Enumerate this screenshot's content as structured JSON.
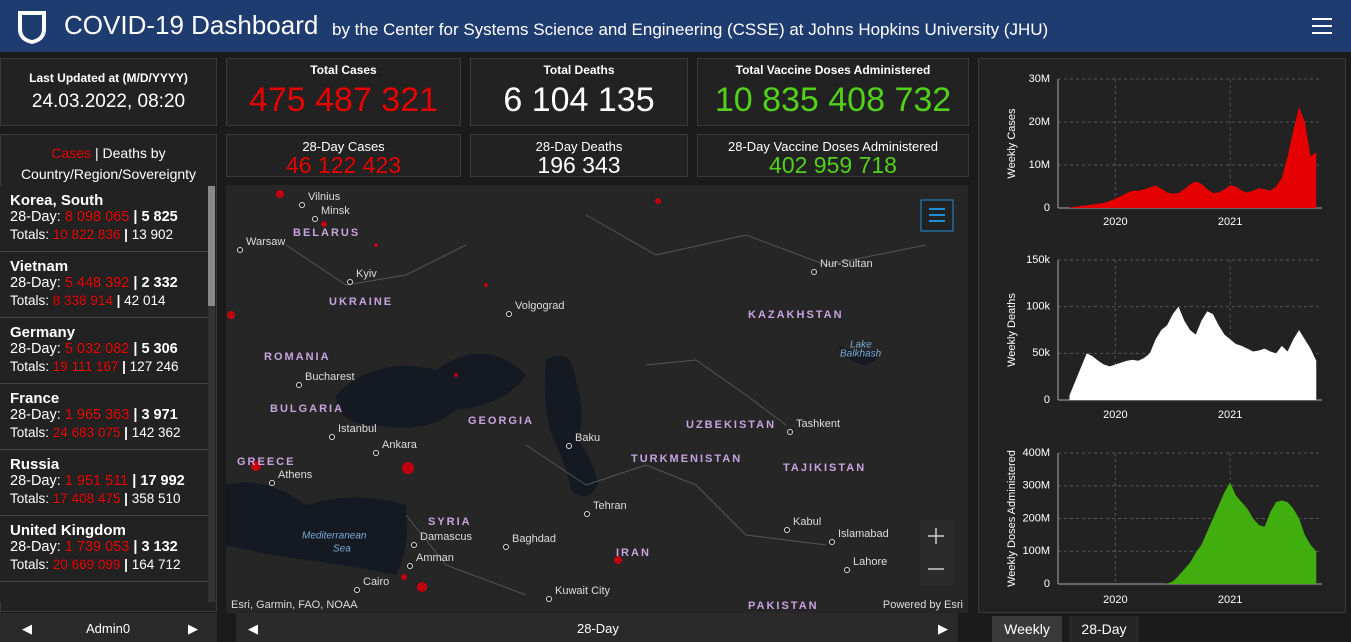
{
  "header": {
    "title": "COVID-19 Dashboard",
    "subtitle": "by the Center for Systems Science and Engineering (CSSE) at Johns Hopkins University (JHU)"
  },
  "last_updated": {
    "label": "Last Updated at (M/D/YYYY)",
    "value": "24.03.2022, 08:20"
  },
  "stats": [
    {
      "label": "Total Cases",
      "value": "475 487 321"
    },
    {
      "label": "Total Deaths",
      "value": "6 104 135"
    },
    {
      "label": "Total Vaccine Doses Administered",
      "value": "10 835 408 732"
    },
    {
      "label": "28-Day Cases",
      "value": "46 122 423"
    },
    {
      "label": "28-Day Deaths",
      "value": "196 343"
    },
    {
      "label": "28-Day Vaccine Doses Administered",
      "value": "402 959 718"
    }
  ],
  "list": {
    "header_cases": "Cases",
    "separator": "|",
    "header_rest": "Deaths by Country/Region/Sovereignty",
    "day28_label": "28-Day:",
    "totals_label": "Totals:",
    "items": [
      {
        "name": "Korea, South",
        "day28_cases": "8 098 065",
        "day28_deaths": "5 825",
        "total_cases": "10 822 836",
        "total_deaths": "13 902"
      },
      {
        "name": "Vietnam",
        "day28_cases": "5 448 392",
        "day28_deaths": "2 332",
        "total_cases": "8 338 914",
        "total_deaths": "42 014"
      },
      {
        "name": "Germany",
        "day28_cases": "5 032 082",
        "day28_deaths": "5 306",
        "total_cases": "19 111 167",
        "total_deaths": "127 246"
      },
      {
        "name": "France",
        "day28_cases": "1 965 363",
        "day28_deaths": "3 971",
        "total_cases": "24 683 075",
        "total_deaths": "142 362"
      },
      {
        "name": "Russia",
        "day28_cases": "1 951 511",
        "day28_deaths": "17 992",
        "total_cases": "17 408 475",
        "total_deaths": "358 510"
      },
      {
        "name": "United Kingdom",
        "day28_cases": "1 739 053",
        "day28_deaths": "3 132",
        "total_cases": "20 669 099",
        "total_deaths": "164 712"
      }
    ]
  },
  "map": {
    "labels": [
      "Vilnius",
      "Minsk",
      "BELARUS",
      "Warsaw",
      "Kyiv",
      "UKRAINE",
      "Volgograd",
      "Nur-Sultan",
      "KAZAKHSTAN",
      "Lake",
      "Balkhash",
      "ROMANIA",
      "Bucharest",
      "BULGARIA",
      "Istanbul",
      "Ankara",
      "GEORGIA",
      "Baku",
      "UZBEKISTAN",
      "Tashkent",
      "TURKMENISTAN",
      "TAJIKISTAN",
      "GREECE",
      "Athens",
      "Tehran",
      "SYRIA",
      "Damascus",
      "Baghdad",
      "IRAN",
      "Kabul",
      "Islamabad",
      "Lahore",
      "Mediterranean",
      "Sea",
      "Amman",
      "Cairo",
      "Kuwait City",
      "PAKISTAN"
    ],
    "attribution": "Esri, Garmin, FAO, NOAA",
    "powered": "Powered by Esri"
  },
  "footer": {
    "left": "Admin0",
    "center": "28-Day",
    "tabs": [
      "Weekly",
      "28-Day"
    ]
  },
  "chart_data": [
    {
      "type": "area",
      "ylabel": "Weekly Cases",
      "color": "#e50000",
      "grid": true,
      "x": [
        2019.6,
        2019.65,
        2019.7,
        2019.75,
        2019.8,
        2019.85,
        2019.9,
        2019.95,
        2020.0,
        2020.05,
        2020.1,
        2020.15,
        2020.2,
        2020.25,
        2020.3,
        2020.35,
        2020.4,
        2020.45,
        2020.5,
        2020.55,
        2020.6,
        2020.65,
        2020.7,
        2020.75,
        2020.8,
        2020.85,
        2020.9,
        2020.95,
        2021.0,
        2021.05,
        2021.1,
        2021.15,
        2021.2,
        2021.25,
        2021.3,
        2021.35,
        2021.4,
        2021.45,
        2021.5,
        2021.55,
        2021.6,
        2021.65,
        2021.7,
        2021.75
      ],
      "values": [
        100000,
        300000,
        500000,
        600000,
        800000,
        1000000,
        1200000,
        1600000,
        2200000,
        2800000,
        3500000,
        4000000,
        4000000,
        4300000,
        4800000,
        5200000,
        4500000,
        3600000,
        3300000,
        3500000,
        4400000,
        5500000,
        6200000,
        5600000,
        4400000,
        3500000,
        3600000,
        4300000,
        5300000,
        5000000,
        4000000,
        3600000,
        4000000,
        4600000,
        4400000,
        4000000,
        5000000,
        7000000,
        12000000,
        18000000,
        23500000,
        20000000,
        12000000,
        13000000
      ],
      "xlim": [
        2019.5,
        2021.8
      ],
      "xticks": [
        2020,
        2021
      ],
      "ylim": [
        0,
        30000000
      ],
      "yticks": [
        0,
        {
          "value": 10000000,
          "label": "10M"
        },
        {
          "value": 20000000,
          "label": "20M"
        },
        {
          "value": 30000000,
          "label": "30M"
        }
      ]
    },
    {
      "type": "area",
      "ylabel": "Weekly Deaths",
      "color": "#ffffff",
      "grid": true,
      "x": [
        2019.6,
        2019.65,
        2019.7,
        2019.75,
        2019.8,
        2019.85,
        2019.9,
        2019.95,
        2020.0,
        2020.05,
        2020.1,
        2020.15,
        2020.2,
        2020.25,
        2020.3,
        2020.35,
        2020.4,
        2020.45,
        2020.5,
        2020.55,
        2020.6,
        2020.65,
        2020.7,
        2020.75,
        2020.8,
        2020.85,
        2020.9,
        2020.95,
        2021.0,
        2021.05,
        2021.1,
        2021.15,
        2021.2,
        2021.25,
        2021.3,
        2021.35,
        2021.4,
        2021.45,
        2021.5,
        2021.55,
        2021.6,
        2021.65,
        2021.7,
        2021.75
      ],
      "values": [
        5000,
        20000,
        35000,
        50000,
        47000,
        42000,
        38000,
        36000,
        38000,
        40000,
        42000,
        43000,
        42000,
        45000,
        50000,
        65000,
        75000,
        80000,
        92000,
        100000,
        85000,
        75000,
        70000,
        85000,
        95000,
        92000,
        80000,
        70000,
        65000,
        60000,
        58000,
        55000,
        52000,
        53000,
        55000,
        52000,
        50000,
        58000,
        52000,
        65000,
        75000,
        65000,
        55000,
        42000
      ],
      "xlim": [
        2019.5,
        2021.8
      ],
      "xticks": [
        2020,
        2021
      ],
      "ylim": [
        0,
        150000
      ],
      "yticks": [
        0,
        {
          "value": 50000,
          "label": "50k"
        },
        {
          "value": 100000,
          "label": "100k"
        },
        {
          "value": 150000,
          "label": "150k"
        }
      ]
    },
    {
      "type": "area",
      "ylabel": "Weekly Doses Administered",
      "color": "#3fae0e",
      "grid": true,
      "x": [
        2019.6,
        2019.65,
        2019.7,
        2019.75,
        2019.8,
        2019.85,
        2019.9,
        2019.95,
        2020.0,
        2020.05,
        2020.1,
        2020.15,
        2020.2,
        2020.25,
        2020.3,
        2020.35,
        2020.4,
        2020.45,
        2020.5,
        2020.55,
        2020.6,
        2020.65,
        2020.7,
        2020.75,
        2020.8,
        2020.85,
        2020.9,
        2020.95,
        2021.0,
        2021.05,
        2021.1,
        2021.15,
        2021.2,
        2021.25,
        2021.3,
        2021.35,
        2021.4,
        2021.45,
        2021.5,
        2021.55,
        2021.6,
        2021.65,
        2021.7,
        2021.75
      ],
      "values": [
        0,
        0,
        0,
        0,
        0,
        0,
        0,
        0,
        0,
        0,
        0,
        0,
        0,
        0,
        0,
        0,
        0,
        1000000,
        8000000,
        25000000,
        45000000,
        65000000,
        95000000,
        120000000,
        160000000,
        200000000,
        240000000,
        280000000,
        310000000,
        270000000,
        250000000,
        230000000,
        200000000,
        180000000,
        175000000,
        220000000,
        250000000,
        255000000,
        250000000,
        230000000,
        200000000,
        150000000,
        120000000,
        100000000
      ],
      "xlim": [
        2019.5,
        2021.8
      ],
      "xticks": [
        2020,
        2021
      ],
      "ylim": [
        0,
        400000000
      ],
      "yticks": [
        0,
        {
          "value": 100000000,
          "label": "100M"
        },
        {
          "value": 200000000,
          "label": "200M"
        },
        {
          "value": 300000000,
          "label": "300M"
        },
        {
          "value": 400000000,
          "label": "400M"
        }
      ]
    }
  ]
}
